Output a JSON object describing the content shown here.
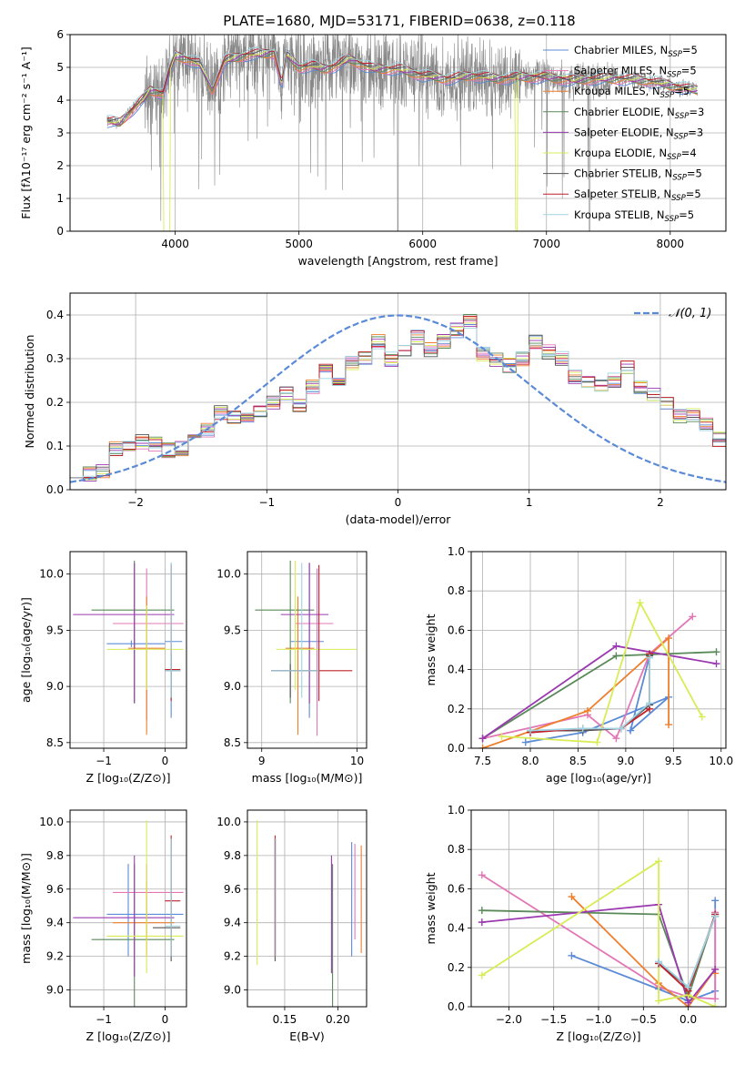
{
  "title": "PLATE=1680, MJD=53171, FIBERID=0638, z=0.118",
  "colors": {
    "chabrier_miles": "#5b8bd6",
    "salpeter_miles": "#e377b6",
    "kroupa_miles": "#ee7f2d",
    "chabrier_elodie": "#5a8a5a",
    "salpeter_elodie": "#9b3ab0",
    "kroupa_elodie": "#d9ec55",
    "chabrier_stelib": "#555555",
    "salpeter_stelib": "#c0202a",
    "kroupa_stelib": "#9fd3e2",
    "data": "#888888"
  },
  "chart_data": [
    {
      "id": "spectrum",
      "type": "line",
      "title": "PLATE=1680, MJD=53171, FIBERID=0638, z=0.118",
      "xlabel": "wavelength [Angstrom, rest frame]",
      "ylabel": "Flux [fλ10⁻¹⁷ erg cm⁻² s⁻¹ A⁻¹]",
      "xlim": [
        3150,
        8450
      ],
      "ylim": [
        0,
        6
      ],
      "xticks": [
        4000,
        5000,
        6000,
        7000,
        8000
      ],
      "yticks": [
        0,
        1,
        2,
        3,
        4,
        5,
        6
      ],
      "legend_position": "top-right",
      "legend": [
        {
          "label": "Chabrier MILES, N",
          "sub": "SSP",
          "post": "=5",
          "color_key": "chabrier_miles"
        },
        {
          "label": "Salpeter MILES, N",
          "sub": "SSP",
          "post": "=5",
          "color_key": "salpeter_miles"
        },
        {
          "label": "Kroupa MILES, N",
          "sub": "SSP",
          "post": "=5",
          "color_key": "kroupa_miles"
        },
        {
          "label": "Chabrier ELODIE, N",
          "sub": "SSP",
          "post": "=3",
          "color_key": "chabrier_elodie"
        },
        {
          "label": "Salpeter ELODIE, N",
          "sub": "SSP",
          "post": "=3",
          "color_key": "salpeter_elodie"
        },
        {
          "label": "Kroupa ELODIE, N",
          "sub": "SSP",
          "post": "=4",
          "color_key": "kroupa_elodie"
        },
        {
          "label": "Chabrier STELIB, N",
          "sub": "SSP",
          "post": "=5",
          "color_key": "chabrier_stelib"
        },
        {
          "label": "Salpeter STELIB, N",
          "sub": "SSP",
          "post": "=5",
          "color_key": "salpeter_stelib"
        },
        {
          "label": "Kroupa STELIB, N",
          "sub": "SSP",
          "post": "=5",
          "color_key": "kroupa_stelib"
        }
      ],
      "continuum": {
        "x": [
          3450,
          3550,
          3650,
          3750,
          3800,
          3900,
          3950,
          4000,
          4100,
          4200,
          4300,
          4400,
          4500,
          4600,
          4700,
          4800,
          4860,
          4900,
          5000,
          5100,
          5200,
          5300,
          5400,
          5500,
          5600,
          5800,
          6000,
          6200,
          6400,
          6600,
          6800,
          7000,
          7200,
          7400,
          7600,
          7800,
          8000,
          8200
        ],
        "y": [
          3.35,
          3.3,
          3.7,
          4.05,
          4.3,
          4.2,
          4.85,
          5.35,
          5.25,
          5.1,
          4.3,
          5.2,
          5.3,
          5.4,
          5.4,
          5.45,
          4.5,
          5.4,
          5.0,
          5.05,
          4.95,
          5.05,
          5.25,
          5.1,
          4.95,
          4.95,
          4.75,
          4.65,
          4.75,
          4.65,
          4.7,
          4.7,
          4.6,
          4.65,
          4.65,
          4.6,
          4.45,
          4.3
        ]
      }
    },
    {
      "id": "residuals",
      "type": "histogram",
      "xlabel": "(data-model)/error",
      "ylabel": "Normed distribution",
      "xlim": [
        -2.5,
        2.5
      ],
      "ylim": [
        0,
        0.45
      ],
      "xticks": [
        -2,
        -1,
        0,
        1,
        2
      ],
      "yticks": [
        0.0,
        0.1,
        0.2,
        0.3,
        0.4
      ],
      "legend_position": "top-right",
      "legend": [
        {
          "label": "𝒩(0, 1)",
          "color_key": "chabrier_miles"
        }
      ],
      "bin_width": 0.1,
      "bin_start": -2.5,
      "series_base": [
        0.045,
        0.035,
        0.04,
        0.095,
        0.1,
        0.11,
        0.105,
        0.09,
        0.095,
        0.12,
        0.135,
        0.175,
        0.165,
        0.16,
        0.18,
        0.2,
        0.22,
        0.19,
        0.235,
        0.27,
        0.255,
        0.29,
        0.3,
        0.34,
        0.3,
        0.32,
        0.35,
        0.32,
        0.34,
        0.365,
        0.385,
        0.31,
        0.3,
        0.285,
        0.3,
        0.34,
        0.315,
        0.3,
        0.26,
        0.25,
        0.235,
        0.25,
        0.28,
        0.235,
        0.215,
        0.2,
        0.17,
        0.17,
        0.15,
        0.115,
        0.12,
        0.1,
        0.1,
        0.09,
        0.08,
        0.07,
        0.065,
        0.05,
        0.045,
        0.04,
        0.035,
        0.03,
        0.025,
        0.02,
        0.02,
        0.02,
        0.02
      ]
    },
    {
      "id": "age_vs_Z",
      "type": "errorbar",
      "xlabel": "Z [log₁₀(Z/Z⊙)]",
      "ylabel": "age  [log₁₀(age/yr)]",
      "xlim": [
        -1.55,
        0.35
      ],
      "ylim": [
        8.45,
        10.2
      ],
      "xticks": [
        -1,
        0
      ],
      "yticks": [
        8.5,
        9.0,
        9.5,
        10.0
      ],
      "points": [
        {
          "color_key": "chabrier_miles",
          "x": 0.1,
          "xlo": 0.0,
          "xhi": 0.28,
          "y": 9.4,
          "ylo": 8.72,
          "yhi": 10.1
        },
        {
          "color_key": "chabrier_miles",
          "x": -0.55,
          "xlo": -0.95,
          "xhi": 0.0,
          "y": 9.38,
          "ylo": 9.35,
          "yhi": 9.41
        },
        {
          "color_key": "salpeter_miles",
          "x": -0.3,
          "xlo": -0.85,
          "xhi": 0.3,
          "y": 9.56,
          "ylo": 8.7,
          "yhi": 10.05
        },
        {
          "color_key": "kroupa_miles",
          "x": -0.3,
          "xlo": -0.6,
          "xhi": 0.0,
          "y": 9.34,
          "ylo": 8.57,
          "yhi": 9.8
        },
        {
          "color_key": "chabrier_elodie",
          "x": -0.5,
          "xlo": -1.2,
          "xhi": 0.15,
          "y": 9.68,
          "ylo": 8.85,
          "yhi": 10.12
        },
        {
          "color_key": "salpeter_elodie",
          "x": -0.5,
          "xlo": -1.5,
          "xhi": 0.15,
          "y": 9.64,
          "ylo": 8.85,
          "yhi": 10.1
        },
        {
          "color_key": "kroupa_elodie",
          "x": -0.3,
          "xlo": -0.95,
          "xhi": 0.3,
          "y": 9.33,
          "ylo": 8.97,
          "yhi": 9.72
        },
        {
          "color_key": "salpeter_stelib",
          "x": 0.1,
          "xlo": 0.0,
          "xhi": 0.25,
          "y": 9.15,
          "ylo": 8.87,
          "yhi": 10.08
        },
        {
          "color_key": "chabrier_stelib",
          "x": 0.1,
          "xlo": 0.0,
          "xhi": 0.25,
          "y": 9.14,
          "ylo": 8.9,
          "yhi": 9.3
        },
        {
          "color_key": "kroupa_stelib",
          "x": 0.1,
          "xlo": 0.0,
          "xhi": 0.25,
          "y": 9.14,
          "ylo": 8.9,
          "yhi": 10.1
        }
      ]
    },
    {
      "id": "age_vs_mass",
      "type": "errorbar",
      "xlabel": "mass [log₁₀(M/M⊙)]",
      "ylabel": "",
      "xlim": [
        8.85,
        10.1
      ],
      "ylim": [
        8.45,
        10.2
      ],
      "xticks": [
        9,
        10
      ],
      "yticks": [
        8.5,
        9.0,
        9.5,
        10.0
      ],
      "points": [
        {
          "color_key": "chabrier_miles",
          "x": 9.5,
          "xlo": 9.3,
          "xhi": 9.65,
          "y": 9.4,
          "ylo": 8.72,
          "yhi": 10.1
        },
        {
          "color_key": "salpeter_miles",
          "x": 9.58,
          "xlo": 9.35,
          "xhi": 9.75,
          "y": 9.56,
          "ylo": 8.56,
          "yhi": 10.05
        },
        {
          "color_key": "kroupa_miles",
          "x": 9.38,
          "xlo": 9.25,
          "xhi": 9.55,
          "y": 9.34,
          "ylo": 8.57,
          "yhi": 9.8
        },
        {
          "color_key": "chabrier_elodie",
          "x": 9.3,
          "xlo": 8.93,
          "xhi": 9.55,
          "y": 9.68,
          "ylo": 8.85,
          "yhi": 10.12
        },
        {
          "color_key": "salpeter_elodie",
          "x": 9.5,
          "xlo": 9.2,
          "xhi": 9.7,
          "y": 9.64,
          "ylo": 8.85,
          "yhi": 10.1
        },
        {
          "color_key": "kroupa_elodie",
          "x": 9.35,
          "xlo": 9.15,
          "xhi": 10.0,
          "y": 9.33,
          "ylo": 8.97,
          "yhi": 10.12
        },
        {
          "color_key": "salpeter_stelib",
          "x": 9.6,
          "xlo": 9.1,
          "xhi": 9.95,
          "y": 9.14,
          "ylo": 8.87,
          "yhi": 10.08
        },
        {
          "color_key": "chabrier_stelib",
          "x": 9.3,
          "xlo": 9.1,
          "xhi": 9.6,
          "y": 9.14,
          "ylo": 8.9,
          "yhi": 9.2
        },
        {
          "color_key": "kroupa_stelib",
          "x": 9.42,
          "xlo": 9.1,
          "xhi": 9.6,
          "y": 9.14,
          "ylo": 8.9,
          "yhi": 10.1
        }
      ]
    },
    {
      "id": "weight_vs_age",
      "type": "line",
      "xlabel": "age  [log₁₀(age/yr)]",
      "ylabel": "mass weight",
      "xlim": [
        7.38,
        10.05
      ],
      "ylim": [
        0,
        1
      ],
      "xticks": [
        7.5,
        8.0,
        8.5,
        9.0,
        9.5,
        10.0
      ],
      "yticks": [
        0.0,
        0.2,
        0.4,
        0.6,
        0.8,
        1.0
      ],
      "series": [
        {
          "color_key": "chabrier_miles",
          "x": [
            7.95,
            8.55,
            9.45,
            9.05,
            9.25
          ],
          "y": [
            0.03,
            0.08,
            0.26,
            0.09,
            0.47
          ]
        },
        {
          "color_key": "salpeter_miles",
          "x": [
            7.5,
            8.6,
            8.9,
            9.25,
            9.7
          ],
          "y": [
            0.05,
            0.17,
            0.05,
            0.48,
            0.67
          ]
        },
        {
          "color_key": "kroupa_miles",
          "x": [
            7.5,
            8.6,
            9.45,
            9.45,
            9.45
          ],
          "y": [
            0.0,
            0.19,
            0.56,
            0.12,
            0.48
          ]
        },
        {
          "color_key": "chabrier_elodie",
          "x": [
            7.5,
            8.9,
            9.95
          ],
          "y": [
            0.05,
            0.47,
            0.49
          ]
        },
        {
          "color_key": "salpeter_elodie",
          "x": [
            7.5,
            8.9,
            9.95
          ],
          "y": [
            0.05,
            0.52,
            0.43
          ]
        },
        {
          "color_key": "kroupa_elodie",
          "x": [
            7.7,
            8.7,
            9.15,
            9.8
          ],
          "y": [
            0.06,
            0.03,
            0.74,
            0.16
          ]
        },
        {
          "color_key": "chabrier_stelib",
          "x": [
            8.0,
            8.55,
            8.95,
            9.25,
            9.25
          ],
          "y": [
            0.09,
            0.09,
            0.1,
            0.22,
            0.47
          ]
        },
        {
          "color_key": "salpeter_stelib",
          "x": [
            8.0,
            8.55,
            8.95,
            9.25,
            9.25
          ],
          "y": [
            0.08,
            0.1,
            0.1,
            0.2,
            0.48
          ]
        },
        {
          "color_key": "kroupa_stelib",
          "x": [
            8.0,
            8.55,
            8.95,
            9.25,
            9.25
          ],
          "y": [
            0.09,
            0.1,
            0.1,
            0.23,
            0.46
          ]
        }
      ]
    },
    {
      "id": "mass_vs_Z",
      "type": "errorbar",
      "xlabel": "Z [log₁₀(Z/Z⊙)]",
      "ylabel": "mass [log₁₀(M/M⊙)]",
      "xlim": [
        -1.55,
        0.35
      ],
      "ylim": [
        8.9,
        10.07
      ],
      "xticks": [
        -1,
        0
      ],
      "yticks": [
        9.0,
        9.2,
        9.4,
        9.6,
        9.8,
        10.0
      ],
      "points": [
        {
          "color_key": "chabrier_miles",
          "x": -0.6,
          "xlo": -0.95,
          "xhi": 0.3,
          "y": 9.45,
          "ylo": 9.2,
          "yhi": 9.75
        },
        {
          "color_key": "salpeter_miles",
          "x": -0.3,
          "xlo": -0.85,
          "xhi": 0.3,
          "y": 9.58,
          "ylo": 9.3,
          "yhi": 9.75
        },
        {
          "color_key": "kroupa_miles",
          "x": -0.3,
          "xlo": -0.85,
          "xhi": 0.15,
          "y": 9.4,
          "ylo": 9.2,
          "yhi": 9.65
        },
        {
          "color_key": "chabrier_elodie",
          "x": -0.5,
          "xlo": -1.2,
          "xhi": 0.15,
          "y": 9.3,
          "ylo": 8.9,
          "yhi": 9.75
        },
        {
          "color_key": "salpeter_elodie",
          "x": -0.5,
          "xlo": -1.5,
          "xhi": 0.15,
          "y": 9.43,
          "ylo": 9.08,
          "yhi": 9.8
        },
        {
          "color_key": "kroupa_elodie",
          "x": -0.3,
          "xlo": -0.95,
          "xhi": 0.3,
          "y": 9.32,
          "ylo": 9.1,
          "yhi": 10.01
        },
        {
          "color_key": "salpeter_stelib",
          "x": 0.1,
          "xlo": 0.0,
          "xhi": 0.25,
          "y": 9.53,
          "ylo": 9.2,
          "yhi": 9.92
        },
        {
          "color_key": "chabrier_stelib",
          "x": 0.1,
          "xlo": -0.2,
          "xhi": 0.25,
          "y": 9.37,
          "ylo": 9.17,
          "yhi": 9.9
        },
        {
          "color_key": "kroupa_stelib",
          "x": 0.1,
          "xlo": 0.0,
          "xhi": 0.25,
          "y": 9.38,
          "ylo": 9.2,
          "yhi": 9.9
        }
      ]
    },
    {
      "id": "mass_vs_ebv",
      "type": "errorbar",
      "xlabel": "E(B-V)",
      "ylabel": "",
      "xlim": [
        0.115,
        0.227
      ],
      "ylim": [
        8.9,
        10.07
      ],
      "xticks": [
        0.15,
        0.2
      ],
      "yticks": [
        9.0,
        9.2,
        9.4,
        9.6,
        9.8,
        10.0
      ],
      "points": [
        {
          "color_key": "kroupa_elodie",
          "x": 0.124,
          "xlo": 0.124,
          "xhi": 0.124,
          "y": 9.6,
          "ylo": 9.15,
          "yhi": 10.01
        },
        {
          "color_key": "chabrier_stelib",
          "x": 0.141,
          "xlo": 0.141,
          "xhi": 0.141,
          "y": 9.5,
          "ylo": 9.17,
          "yhi": 9.9
        },
        {
          "color_key": "salpeter_stelib",
          "x": 0.141,
          "xlo": 0.141,
          "xhi": 0.141,
          "y": 9.5,
          "ylo": 9.2,
          "yhi": 9.92
        },
        {
          "color_key": "kroupa_stelib",
          "x": 0.1415,
          "xlo": 0.1415,
          "xhi": 0.1415,
          "y": 9.5,
          "ylo": 9.2,
          "yhi": 9.9
        },
        {
          "color_key": "salpeter_elodie",
          "x": 0.194,
          "xlo": 0.194,
          "xhi": 0.194,
          "y": 9.45,
          "ylo": 9.1,
          "yhi": 9.8
        },
        {
          "color_key": "chabrier_elodie",
          "x": 0.195,
          "xlo": 0.195,
          "xhi": 0.195,
          "y": 9.3,
          "ylo": 8.9,
          "yhi": 9.75
        },
        {
          "color_key": "chabrier_miles",
          "x": 0.213,
          "xlo": 0.213,
          "xhi": 0.213,
          "y": 9.45,
          "ylo": 9.2,
          "yhi": 9.88
        },
        {
          "color_key": "salpeter_miles",
          "x": 0.216,
          "xlo": 0.216,
          "xhi": 0.216,
          "y": 9.55,
          "ylo": 9.3,
          "yhi": 9.87
        },
        {
          "color_key": "kroupa_miles",
          "x": 0.222,
          "xlo": 0.222,
          "xhi": 0.222,
          "y": 9.4,
          "ylo": 9.22,
          "yhi": 9.86
        }
      ]
    },
    {
      "id": "weight_vs_Z",
      "type": "line",
      "xlabel": "Z [log₁₀(Z/Z⊙)]",
      "ylabel": "mass weight",
      "xlim": [
        -2.42,
        0.42
      ],
      "ylim": [
        0,
        1
      ],
      "xticks": [
        -2.0,
        -1.5,
        -1.0,
        -0.5,
        0.0
      ],
      "yticks": [
        0.0,
        0.2,
        0.4,
        0.6,
        0.8,
        1.0
      ],
      "series": [
        {
          "color_key": "chabrier_miles",
          "x": [
            -1.3,
            -0.33,
            0.0,
            0.3,
            0.3
          ],
          "y": [
            0.26,
            0.09,
            0.03,
            0.08,
            0.54
          ]
        },
        {
          "color_key": "salpeter_miles",
          "x": [
            -2.3,
            -0.33,
            0.0,
            0.3,
            0.3
          ],
          "y": [
            0.67,
            0.1,
            0.05,
            0.04,
            0.48
          ]
        },
        {
          "color_key": "kroupa_miles",
          "x": [
            -1.3,
            -0.33,
            0.0,
            0.3,
            0.3
          ],
          "y": [
            0.56,
            0.12,
            0.0,
            0.19,
            0.17
          ]
        },
        {
          "color_key": "chabrier_elodie",
          "x": [
            -2.3,
            -0.33,
            0.0,
            0.3
          ],
          "y": [
            0.49,
            0.47,
            0.05,
            0.47
          ]
        },
        {
          "color_key": "salpeter_elodie",
          "x": [
            -2.3,
            -0.33,
            0.0,
            0.3
          ],
          "y": [
            0.43,
            0.52,
            0.02,
            0.19
          ]
        },
        {
          "color_key": "kroupa_elodie",
          "x": [
            -2.3,
            -0.33,
            -0.33,
            0.0,
            0.3
          ],
          "y": [
            0.16,
            0.74,
            0.03,
            0.06,
            0.0
          ]
        },
        {
          "color_key": "chabrier_stelib",
          "x": [
            -0.33,
            0.0,
            0.3,
            0.3
          ],
          "y": [
            0.22,
            0.1,
            0.46,
            0.46
          ]
        },
        {
          "color_key": "salpeter_stelib",
          "x": [
            -0.33,
            0.0,
            0.3
          ],
          "y": [
            0.22,
            0.08,
            0.47
          ]
        },
        {
          "color_key": "kroupa_stelib",
          "x": [
            -0.33,
            0.0,
            0.3
          ],
          "y": [
            0.23,
            0.1,
            0.46
          ]
        }
      ]
    }
  ]
}
